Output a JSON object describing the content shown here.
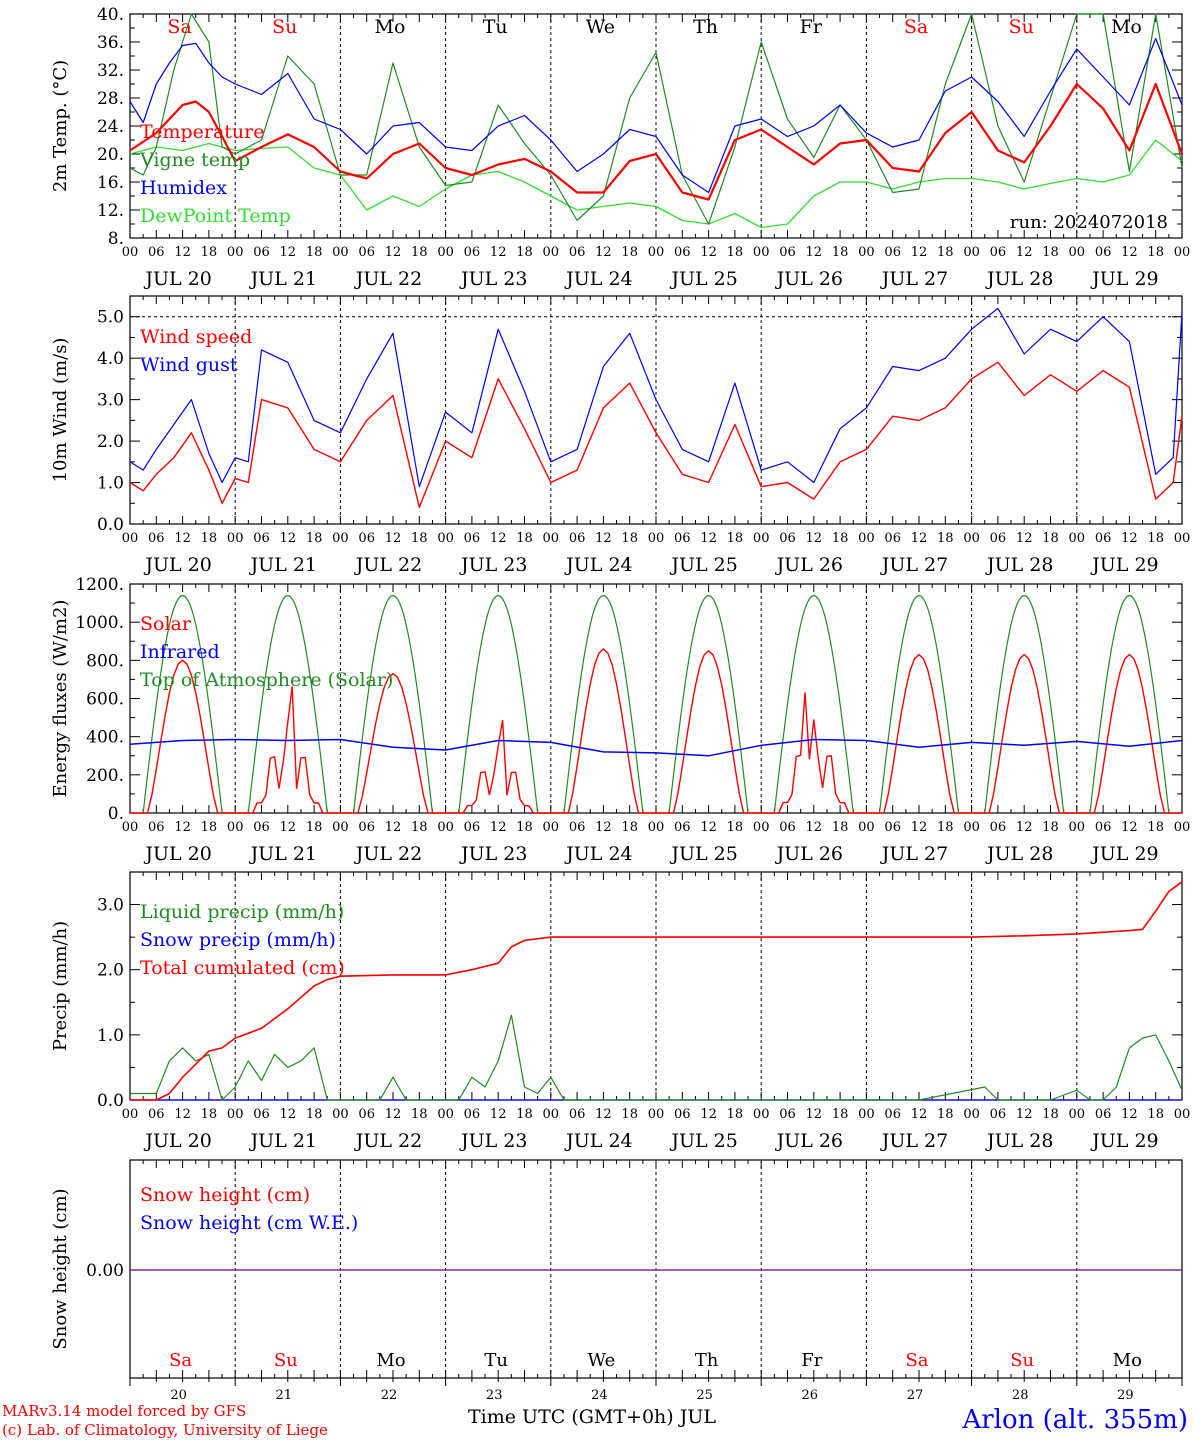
{
  "colors": {
    "red": "#ff0000",
    "dark_green": "#228b22",
    "blue": "#0000ff",
    "light_green": "#33dd33",
    "purple": "#7f2a9f",
    "black": "#000000"
  },
  "days": [
    {
      "abbr": "Sa",
      "date": "JUL 20",
      "num": "20",
      "weekend": true
    },
    {
      "abbr": "Su",
      "date": "JUL 21",
      "num": "21",
      "weekend": true
    },
    {
      "abbr": "Mo",
      "date": "JUL 22",
      "num": "22",
      "weekend": false
    },
    {
      "abbr": "Tu",
      "date": "JUL 23",
      "num": "23",
      "weekend": false
    },
    {
      "abbr": "We",
      "date": "JUL 24",
      "num": "24",
      "weekend": false
    },
    {
      "abbr": "Th",
      "date": "JUL 25",
      "num": "25",
      "weekend": false
    },
    {
      "abbr": "Fr",
      "date": "JUL 26",
      "num": "26",
      "weekend": false
    },
    {
      "abbr": "Sa",
      "date": "JUL 27",
      "num": "27",
      "weekend": true
    },
    {
      "abbr": "Su",
      "date": "JUL 28",
      "num": "28",
      "weekend": true
    },
    {
      "abbr": "Mo",
      "date": "JUL 29",
      "num": "29",
      "weekend": false
    }
  ],
  "hour_labels": [
    "00",
    "06",
    "12",
    "18"
  ],
  "end_hour_label": "00",
  "run_label": "run: 2024072018",
  "footer": {
    "model": "MARv3.14 model forced by GFS",
    "lab": "(c) Lab. of Climatology, University of Liege",
    "xlabel": "Time UTC (GMT+0h) JUL",
    "station": "Arlon (alt. 355m)"
  },
  "chart_data": [
    {
      "type": "line",
      "ylabel": "2m Temp. (°C)",
      "ylim": [
        8,
        40
      ],
      "yticks": [
        "8.",
        "12.",
        "16.",
        "20.",
        "24.",
        "28.",
        "32.",
        "36.",
        "40."
      ],
      "x_unit": "hours from JUL 20 00 UTC",
      "series": [
        {
          "name": "Temperature",
          "color": "#ff0000",
          "x": [
            0,
            6,
            12,
            15,
            18,
            24,
            30,
            36,
            42,
            48,
            54,
            60,
            66,
            72,
            78,
            84,
            90,
            96,
            102,
            108,
            114,
            120,
            126,
            132,
            138,
            144,
            150,
            156,
            162,
            168,
            174,
            180,
            186,
            192,
            198,
            204,
            210,
            216,
            222,
            228,
            234,
            240
          ],
          "y": [
            20.5,
            23,
            27,
            27.5,
            26,
            19,
            21,
            22.8,
            21,
            17.5,
            16.5,
            20,
            21.5,
            18,
            17,
            18.5,
            19.3,
            17.5,
            14.5,
            14.5,
            19,
            20,
            14.5,
            13.5,
            22,
            23.5,
            21,
            18.5,
            21.5,
            22,
            18,
            17.5,
            23,
            26,
            20.5,
            18.8,
            24,
            30,
            26.5,
            20.5,
            30,
            20
          ]
        },
        {
          "name": "Vigne temp",
          "color": "#228b22",
          "x": [
            0,
            3,
            6,
            10,
            14,
            18,
            21,
            24,
            30,
            36,
            42,
            48,
            54,
            60,
            66,
            72,
            78,
            84,
            90,
            96,
            102,
            108,
            114,
            120,
            126,
            132,
            138,
            144,
            150,
            156,
            162,
            168,
            174,
            180,
            186,
            192,
            198,
            204,
            210,
            216,
            222,
            228,
            234,
            240
          ],
          "y": [
            18,
            17,
            21,
            32,
            40,
            36,
            21,
            20,
            22,
            34,
            30,
            17,
            17,
            33,
            21,
            15.5,
            16,
            27,
            21.5,
            17,
            10.5,
            14,
            28,
            34.5,
            17,
            10,
            21,
            36,
            25,
            19.5,
            27,
            22,
            14.5,
            15,
            30,
            40,
            24,
            16,
            28,
            40,
            40,
            17.5,
            40,
            18
          ]
        },
        {
          "name": "Humidex",
          "color": "#0000ff",
          "x": [
            0,
            3,
            6,
            9,
            12,
            15,
            18,
            21,
            24,
            30,
            36,
            42,
            48,
            54,
            60,
            66,
            72,
            78,
            84,
            90,
            96,
            102,
            108,
            114,
            120,
            126,
            132,
            138,
            144,
            150,
            156,
            162,
            168,
            174,
            180,
            186,
            192,
            198,
            204,
            210,
            216,
            222,
            228,
            234,
            240
          ],
          "y": [
            27.5,
            24.5,
            30,
            33,
            35.5,
            35.8,
            33,
            31,
            30,
            28.5,
            31.5,
            25,
            23.5,
            20,
            24,
            24.5,
            21,
            20.5,
            24,
            25.5,
            22,
            17.5,
            20,
            23.5,
            22.5,
            17,
            14.5,
            24,
            25,
            22.5,
            24,
            27,
            23,
            21,
            22,
            29,
            31,
            27.5,
            22.5,
            29,
            35,
            31,
            27,
            36.5,
            27
          ]
        },
        {
          "name": "DewPoint Temp",
          "color": "#33dd33",
          "x": [
            0,
            6,
            12,
            18,
            24,
            30,
            36,
            42,
            48,
            54,
            60,
            66,
            72,
            78,
            84,
            90,
            96,
            102,
            108,
            114,
            120,
            126,
            132,
            138,
            144,
            150,
            156,
            162,
            168,
            174,
            180,
            186,
            192,
            198,
            204,
            210,
            216,
            222,
            228,
            234,
            240
          ],
          "y": [
            20,
            21,
            20.5,
            21.5,
            20.5,
            20.8,
            21,
            18,
            17,
            12,
            14,
            12.5,
            15,
            17,
            17.5,
            16,
            14,
            12,
            12.5,
            13,
            12.5,
            10.5,
            10,
            11.5,
            9.5,
            10,
            14,
            16,
            16,
            15,
            16,
            16.5,
            16.5,
            16,
            15,
            15.8,
            16.5,
            16,
            17,
            22,
            19
          ]
        }
      ]
    },
    {
      "type": "line",
      "ylabel": "10m Wind (m/s)",
      "ylim": [
        0,
        5.5
      ],
      "yticks": [
        "0.0",
        "1.0",
        "2.0",
        "3.0",
        "4.0",
        "5.0"
      ],
      "x_unit": "hours from JUL 20 00 UTC",
      "series": [
        {
          "name": "Wind speed",
          "color": "#ff0000",
          "x": [
            0,
            3,
            6,
            10,
            14,
            18,
            21,
            24,
            27,
            30,
            36,
            42,
            48,
            54,
            60,
            66,
            72,
            78,
            84,
            90,
            96,
            102,
            108,
            114,
            120,
            126,
            132,
            138,
            144,
            150,
            156,
            162,
            168,
            174,
            180,
            186,
            192,
            198,
            204,
            210,
            216,
            222,
            228,
            234,
            238,
            240
          ],
          "y": [
            1.0,
            0.8,
            1.2,
            1.6,
            2.2,
            1.3,
            0.5,
            1.1,
            1.0,
            3.0,
            2.8,
            1.8,
            1.5,
            2.5,
            3.1,
            0.4,
            2.0,
            1.6,
            3.5,
            2.3,
            1.0,
            1.3,
            2.8,
            3.4,
            2.2,
            1.2,
            1.0,
            2.4,
            0.9,
            1.0,
            0.6,
            1.5,
            1.8,
            2.6,
            2.5,
            2.8,
            3.5,
            3.9,
            3.1,
            3.6,
            3.2,
            3.7,
            3.3,
            0.6,
            1.0,
            2.6
          ]
        },
        {
          "name": "Wind gust",
          "color": "#0000ff",
          "x": [
            0,
            3,
            6,
            10,
            14,
            18,
            21,
            24,
            27,
            30,
            36,
            42,
            48,
            54,
            60,
            66,
            72,
            78,
            84,
            90,
            96,
            102,
            108,
            114,
            120,
            126,
            132,
            138,
            144,
            150,
            156,
            162,
            168,
            174,
            180,
            186,
            192,
            198,
            204,
            210,
            216,
            222,
            228,
            234,
            238,
            240
          ],
          "y": [
            1.5,
            1.3,
            1.8,
            2.4,
            3.0,
            1.7,
            1.0,
            1.6,
            1.5,
            4.2,
            3.9,
            2.5,
            2.2,
            3.5,
            4.6,
            0.9,
            2.7,
            2.2,
            4.7,
            3.2,
            1.5,
            1.8,
            3.8,
            4.6,
            3.0,
            1.8,
            1.5,
            3.4,
            1.3,
            1.5,
            1.0,
            2.3,
            2.8,
            3.8,
            3.7,
            4.0,
            4.7,
            5.2,
            4.1,
            4.7,
            4.4,
            5.0,
            4.4,
            1.2,
            1.6,
            5.1
          ]
        }
      ]
    },
    {
      "type": "line",
      "ylabel": "Energy fluxes (W/m2)",
      "ylim": [
        0,
        1200
      ],
      "yticks": [
        "0.",
        "200.",
        "400.",
        "600.",
        "800.",
        "1000.",
        "1200."
      ],
      "x_unit": "hours from JUL 20 00 UTC",
      "series": [
        {
          "name": "Solar",
          "color": "#ff0000",
          "peaks": [
            800,
            680,
            730,
            500,
            860,
            850,
            700,
            830,
            830,
            830
          ],
          "peak_hours": [
            12,
            13,
            13,
            13,
            12,
            12,
            10,
            12,
            12,
            12
          ]
        },
        {
          "name": "Infrared",
          "color": "#0000ff",
          "x": [
            0,
            12,
            24,
            36,
            48,
            60,
            72,
            84,
            96,
            108,
            120,
            132,
            144,
            156,
            168,
            180,
            192,
            204,
            216,
            228,
            240
          ],
          "y": [
            360,
            380,
            385,
            380,
            385,
            345,
            330,
            380,
            370,
            320,
            315,
            300,
            355,
            385,
            380,
            345,
            370,
            355,
            375,
            350,
            380
          ]
        },
        {
          "name": "Top of Atmosphere (Solar)",
          "color": "#228b22",
          "peak": 1140
        }
      ]
    },
    {
      "type": "line",
      "ylabel": "Precip (mm/h)",
      "ylim": [
        0,
        3.5
      ],
      "yticks": [
        "0.0",
        "1.0",
        "2.0",
        "3.0"
      ],
      "x_unit": "hours from JUL 20 00 UTC",
      "series": [
        {
          "name": "Liquid precip (mm/h)",
          "color": "#228b22",
          "x": [
            0,
            6,
            9,
            12,
            15,
            18,
            21,
            24,
            27,
            30,
            33,
            36,
            39,
            42,
            45,
            48,
            51,
            54,
            57,
            60,
            63,
            66,
            69,
            72,
            75,
            78,
            81,
            84,
            87,
            90,
            93,
            96,
            99,
            102,
            120,
            144,
            168,
            180,
            195,
            198,
            210,
            216,
            219,
            222,
            225,
            228,
            231,
            234,
            237,
            240
          ],
          "y": [
            0.1,
            0.1,
            0.6,
            0.8,
            0.6,
            0.7,
            0.0,
            0.2,
            0.6,
            0.3,
            0.7,
            0.5,
            0.6,
            0.8,
            0.0,
            0.0,
            0.0,
            0.0,
            0.0,
            0.35,
            0.0,
            0.0,
            0.0,
            0.0,
            0.0,
            0.35,
            0.2,
            0.6,
            1.3,
            0.2,
            0.1,
            0.35,
            0.0,
            0.0,
            0.0,
            0.0,
            0.0,
            0.0,
            0.2,
            0.0,
            0.0,
            0.15,
            0.0,
            0.0,
            0.2,
            0.8,
            0.95,
            1.0,
            0.6,
            0.15
          ]
        },
        {
          "name": "Snow precip (mm/h)",
          "color": "#0000ff",
          "x": [
            0,
            240
          ],
          "y": [
            0,
            0
          ]
        },
        {
          "name": "Total cumulated (cm)",
          "color": "#ff0000",
          "x": [
            0,
            6,
            9,
            12,
            15,
            18,
            21,
            24,
            30,
            36,
            42,
            45,
            48,
            60,
            72,
            78,
            84,
            87,
            90,
            96,
            102,
            120,
            144,
            168,
            180,
            192,
            204,
            216,
            228,
            231,
            234,
            237,
            240
          ],
          "y": [
            0.0,
            0.0,
            0.1,
            0.35,
            0.55,
            0.75,
            0.8,
            0.95,
            1.1,
            1.4,
            1.75,
            1.85,
            1.9,
            1.92,
            1.92,
            2.0,
            2.1,
            2.35,
            2.45,
            2.5,
            2.5,
            2.5,
            2.5,
            2.5,
            2.5,
            2.5,
            2.52,
            2.55,
            2.6,
            2.62,
            2.9,
            3.2,
            3.35
          ]
        }
      ]
    },
    {
      "type": "line",
      "ylabel": "Snow height (cm)",
      "yticks": [
        "0.00"
      ],
      "x_unit": "hours from JUL 20 00 UTC",
      "series": [
        {
          "name": "Snow height (cm)",
          "color": "#ff0000",
          "x": [
            0,
            240
          ],
          "y": [
            0,
            0
          ]
        },
        {
          "name": "Snow height (cm W.E.)",
          "color": "#0000ff",
          "x": [
            0,
            240
          ],
          "y": [
            0,
            0
          ]
        }
      ]
    }
  ]
}
